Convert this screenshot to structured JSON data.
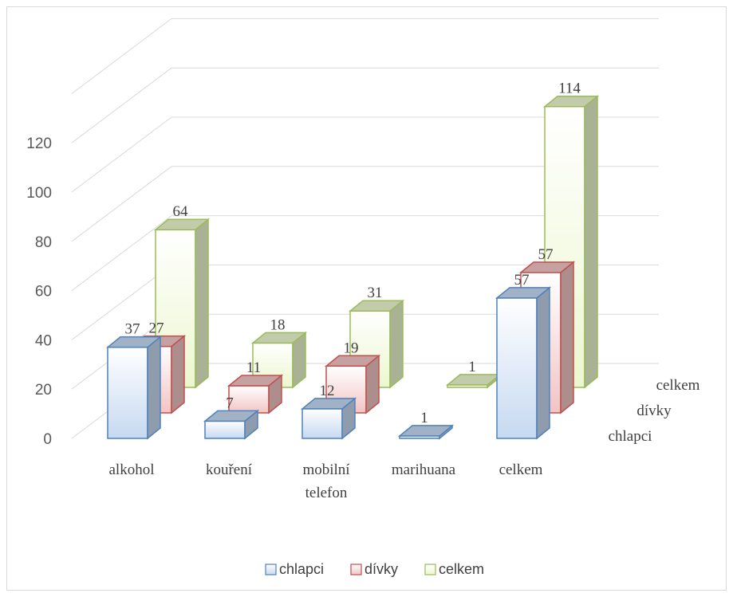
{
  "chart_data": {
    "type": "bar",
    "subtype": "3d-clustered-column",
    "categories": [
      [
        "alkohol"
      ],
      [
        "kouření"
      ],
      [
        "mobilní",
        "telefon"
      ],
      [
        "marihuana"
      ],
      [
        "celkem"
      ]
    ],
    "series": [
      {
        "name": "chlapci",
        "values": [
          37,
          7,
          12,
          1,
          57
        ],
        "color": "#4f81bd",
        "fill": "#c6d9f1"
      },
      {
        "name": "dívky",
        "values": [
          27,
          11,
          19,
          null,
          57
        ],
        "color": "#c0504d",
        "fill": "#f2c4c4"
      },
      {
        "name": "celkem",
        "values": [
          64,
          18,
          31,
          1,
          114
        ],
        "color": "#9bbb59",
        "fill": "#ecf7cf"
      }
    ],
    "ylim": [
      0,
      140
    ],
    "yticks": [
      0,
      20,
      40,
      60,
      80,
      100,
      120
    ],
    "grid": true,
    "legend_position": "bottom"
  }
}
